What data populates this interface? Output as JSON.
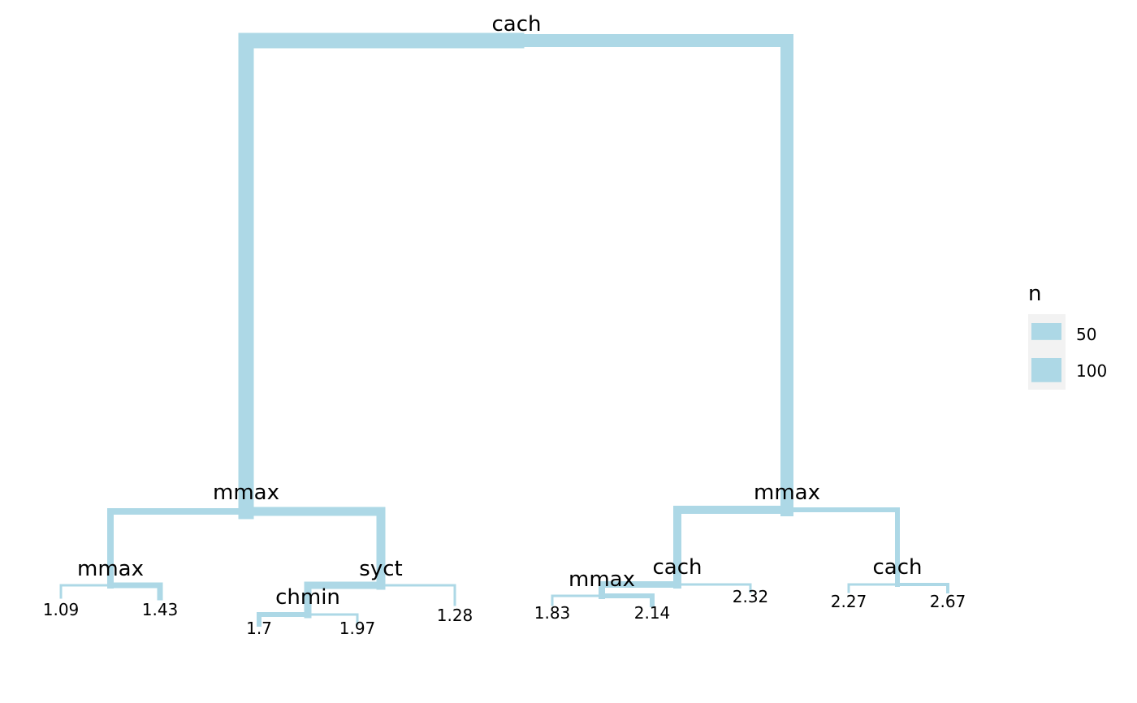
{
  "edge_color": "#add8e6",
  "legend_bg_color": "#f2f2f2",
  "chart_data": {
    "type": "tree",
    "nodes": [
      {
        "id": "n1",
        "label": "cach",
        "n": 209
      },
      {
        "id": "n2",
        "label": "mmax",
        "parent": "n1",
        "n": 116
      },
      {
        "id": "n3",
        "label": "mmax",
        "parent": "n1",
        "n": 93
      },
      {
        "id": "n4",
        "label": "mmax",
        "parent": "n2",
        "n": 50
      },
      {
        "id": "n5",
        "label": "syct",
        "parent": "n2",
        "n": 66
      },
      {
        "id": "n6",
        "label": "chmin",
        "parent": "n5",
        "n": 56
      },
      {
        "id": "n7",
        "label": "cach",
        "parent": "n3",
        "n": 60
      },
      {
        "id": "n8",
        "label": "cach",
        "parent": "n3",
        "n": 33
      },
      {
        "id": "n9",
        "label": "mmax",
        "parent": "n7",
        "n": 50
      }
    ],
    "leaves": [
      {
        "id": "l1",
        "value": "1.09",
        "parent": "n4",
        "n": 8
      },
      {
        "id": "l2",
        "value": "1.43",
        "parent": "n4",
        "n": 42
      },
      {
        "id": "l3",
        "value": "1.7",
        "parent": "n6",
        "n": 38
      },
      {
        "id": "l4",
        "value": "1.97",
        "parent": "n6",
        "n": 18
      },
      {
        "id": "l5",
        "value": "1.28",
        "parent": "n5",
        "n": 10
      },
      {
        "id": "l6",
        "value": "1.83",
        "parent": "n9",
        "n": 17
      },
      {
        "id": "l7",
        "value": "2.14",
        "parent": "n9",
        "n": 33
      },
      {
        "id": "l8",
        "value": "2.32",
        "parent": "n7",
        "n": 10
      },
      {
        "id": "l9",
        "value": "2.27",
        "parent": "n8",
        "n": 8
      },
      {
        "id": "l10",
        "value": "2.67",
        "parent": "n8",
        "n": 25
      }
    ],
    "legend": {
      "title": "n",
      "entries": [
        {
          "label": "50",
          "n": 50
        },
        {
          "label": "100",
          "n": 100
        }
      ]
    }
  }
}
